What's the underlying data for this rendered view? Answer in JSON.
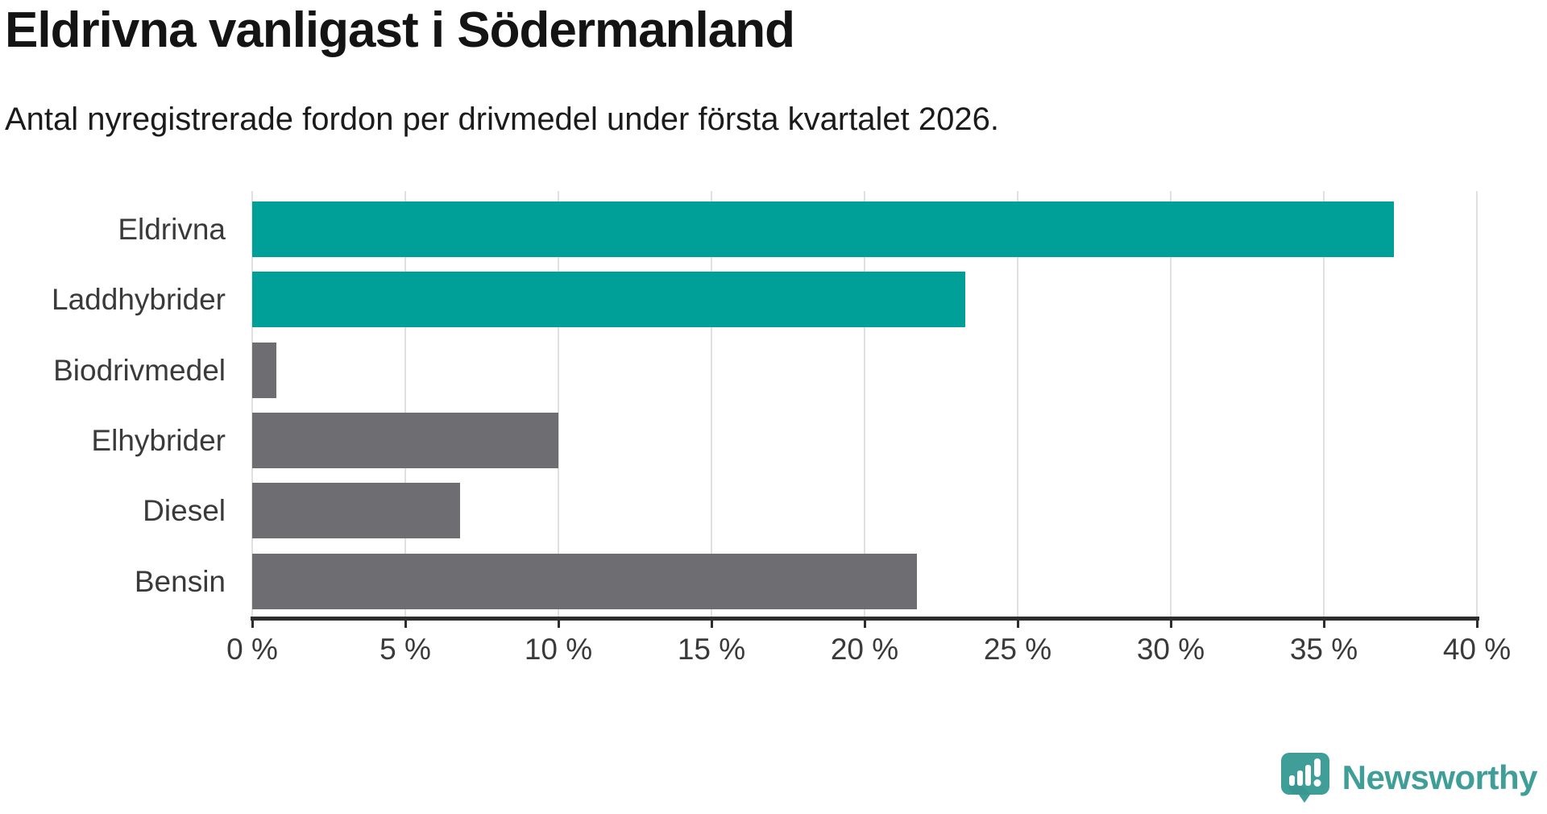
{
  "title": "Eldrivna vanligast i Södermanland",
  "subtitle": "Antal nyregistrerade fordon per drivmedel under första kvartalet 2026.",
  "chart_data": {
    "type": "bar",
    "orientation": "horizontal",
    "title": "Eldrivna vanligast i Södermanland",
    "subtitle": "Antal nyregistrerade fordon per drivmedel under första kvartalet 2026.",
    "categories": [
      "Eldrivna",
      "Laddhybrider",
      "Biodrivmedel",
      "Elhybrider",
      "Diesel",
      "Bensin"
    ],
    "values": [
      37.3,
      23.3,
      0.8,
      10.0,
      6.8,
      21.7
    ],
    "unit": "%",
    "bar_colors": [
      "#00a099",
      "#00a099",
      "#6d6d72",
      "#6d6d72",
      "#6d6d72",
      "#6d6d72"
    ],
    "highlight_color": "#00a099",
    "default_color": "#6d6d72",
    "xlabel": "",
    "ylabel": "",
    "xlim": [
      0,
      40
    ],
    "xtick_values": [
      0,
      5,
      10,
      15,
      20,
      25,
      30,
      35,
      40
    ],
    "xtick_labels": [
      "0 %",
      "5 %",
      "10 %",
      "15 %",
      "20 %",
      "25 %",
      "30 %",
      "35 %",
      "40 %"
    ],
    "grid": "vertical",
    "legend": "none"
  },
  "colors": {
    "background": "#ffffff",
    "gridline": "#e0e0e0",
    "axis_line": "#2d2d2d",
    "tick_label": "#3a3a3a",
    "category_label": "#3a3a3a",
    "title_text": "#141414",
    "subtitle_text": "#1b1b1b",
    "brand_teal": "#3f9e98"
  },
  "footer": {
    "brand": "Newsworthy",
    "logo_icon": "newsworthy-speech-bubble-chart-icon"
  }
}
